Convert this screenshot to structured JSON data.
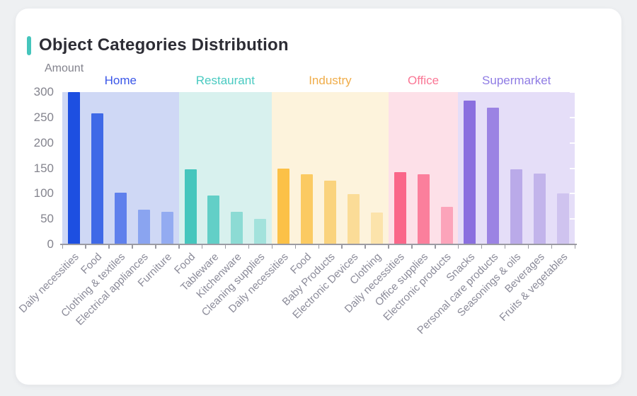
{
  "card": {
    "title": "Object Categories Distribution",
    "accent_color": "#45c5bc"
  },
  "chart_data": {
    "type": "bar",
    "title": "Object Categories Distribution",
    "ylabel": "Amount",
    "xlabel": "",
    "ylim": [
      0,
      300
    ],
    "yticks": [
      0,
      50,
      100,
      150,
      200,
      250,
      300
    ],
    "grid": false,
    "legend_position": "inline-top-group-labels",
    "groups": [
      {
        "name": "Home",
        "label_color": "#3a56e8",
        "band_color": "#cfd8f5",
        "bar_colors": [
          "#1d4fe1",
          "#3f69e7",
          "#5f80ec",
          "#8aa4f0",
          "#93abf1"
        ],
        "categories": [
          "Daily necessities",
          "Food",
          "Clothing & textiles",
          "Electrical appliances",
          "Furniture"
        ],
        "values": [
          300,
          258,
          102,
          69,
          64
        ]
      },
      {
        "name": "Restaurant",
        "label_color": "#49cac1",
        "band_color": "#d8f1ee",
        "bar_colors": [
          "#45c6bd",
          "#62cfc7",
          "#8cdbd4",
          "#a3e2dc"
        ],
        "categories": [
          "Food",
          "Tableware",
          "Kitchenware",
          "Cleaning supplies"
        ],
        "values": [
          148,
          96,
          64,
          50
        ]
      },
      {
        "name": "Industry",
        "label_color": "#f0ad4a",
        "band_color": "#fdf3dc",
        "bar_colors": [
          "#fcc147",
          "#fbca62",
          "#fad37d",
          "#fbdc97",
          "#fce3ab"
        ],
        "categories": [
          "Daily necessities",
          "Food",
          "Baby Products",
          "Electronic Devices",
          "Clothing"
        ],
        "values": [
          150,
          138,
          126,
          99,
          63
        ]
      },
      {
        "name": "Office",
        "label_color": "#fa7795",
        "band_color": "#fde0e8",
        "bar_colors": [
          "#fa6689",
          "#fb7f9c",
          "#fca4ba"
        ],
        "categories": [
          "Daily necessities",
          "Office supplies",
          "Electronic products"
        ],
        "values": [
          142,
          138,
          74
        ]
      },
      {
        "name": "Supermarket",
        "label_color": "#8f7ce4",
        "band_color": "#e5def8",
        "bar_colors": [
          "#8a6fdf",
          "#9b83e3",
          "#baaae9",
          "#c2b4eb",
          "#cfc3ef"
        ],
        "categories": [
          "Snacks",
          "Personal care products",
          "Seasonings & oils",
          "Beverages",
          "Fruits & vegetables"
        ],
        "values": [
          283,
          270,
          148,
          140,
          101
        ]
      }
    ]
  }
}
